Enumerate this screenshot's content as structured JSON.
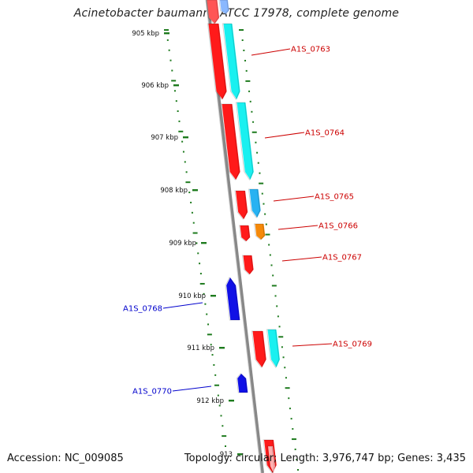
{
  "title": "Acinetobacter baumannii ATCC 17978, complete genome",
  "footer": {
    "accession": "Accession: NC_009085",
    "summary": "Topology: circular; Length: 3,976,747 bp; Genes: 3,435"
  },
  "colors": {
    "backbone": "#888888",
    "tick": "#1e7b1e",
    "forward_label": "#cc0000",
    "reverse_label": "#0000cc",
    "cds_red": "#ff1a1a",
    "cds_cyan": "#19f0f0",
    "cds_skyblue": "#27b2f2",
    "cds_orange": "#f5890a",
    "cds_blue": "#1010e6"
  },
  "ticks": [
    "905 kbp",
    "906 kbp",
    "907 kbp",
    "908 kbp",
    "909 kbp",
    "910 kbp",
    "911 kbp",
    "912 kbp",
    "913"
  ],
  "genes": [
    {
      "id": "A1S_0763",
      "strand": "forward"
    },
    {
      "id": "A1S_0764",
      "strand": "forward"
    },
    {
      "id": "A1S_0765",
      "strand": "forward"
    },
    {
      "id": "A1S_0766",
      "strand": "forward"
    },
    {
      "id": "A1S_0767",
      "strand": "forward"
    },
    {
      "id": "A1S_0768",
      "strand": "reverse"
    },
    {
      "id": "A1S_0769",
      "strand": "forward"
    },
    {
      "id": "A1S_0770",
      "strand": "reverse"
    }
  ]
}
